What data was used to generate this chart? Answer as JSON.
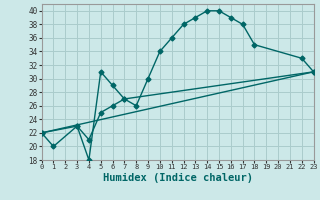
{
  "xlabel": "Humidex (Indice chaleur)",
  "bg_color": "#cce8e8",
  "grid_color": "#aacccc",
  "line_color": "#006666",
  "line1_x": [
    0,
    1,
    3,
    4,
    5,
    6,
    7,
    8,
    9,
    10,
    11,
    12,
    13,
    14,
    15,
    16,
    17,
    18,
    22,
    23
  ],
  "line1_y": [
    22,
    20,
    23,
    18,
    31,
    29,
    27,
    26,
    30,
    34,
    36,
    38,
    39,
    40,
    40,
    39,
    38,
    35,
    33,
    31
  ],
  "line2_x": [
    0,
    3,
    4,
    5,
    6,
    7,
    23
  ],
  "line2_y": [
    22,
    23,
    21,
    25,
    26,
    27,
    31
  ],
  "line3_x": [
    0,
    23
  ],
  "line3_y": [
    22,
    31
  ],
  "xlim": [
    0,
    23
  ],
  "ylim": [
    18,
    41
  ],
  "xticks": [
    0,
    1,
    2,
    3,
    4,
    5,
    6,
    7,
    8,
    9,
    10,
    11,
    12,
    13,
    14,
    15,
    16,
    17,
    18,
    19,
    20,
    21,
    22,
    23
  ],
  "yticks": [
    18,
    20,
    22,
    24,
    26,
    28,
    30,
    32,
    34,
    36,
    38,
    40
  ],
  "markersize": 2.5,
  "linewidth": 1.0,
  "tick_fontsize": 5.5,
  "xlabel_fontsize": 7.5
}
